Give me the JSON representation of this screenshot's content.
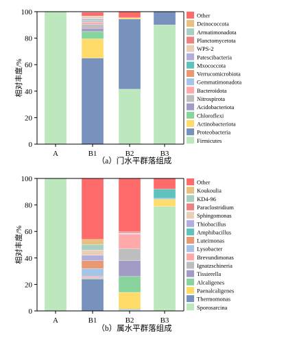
{
  "chart_data": [
    {
      "type": "bar",
      "stacked": true,
      "caption": "（a）门水平群落组成",
      "ylabel": "相对丰度/%",
      "xlabel": "",
      "ylim": [
        0,
        100
      ],
      "yticks": [
        0,
        20,
        40,
        60,
        80,
        100
      ],
      "grid": false,
      "legend_position": "right",
      "categories": [
        "A",
        "B1",
        "B2",
        "B3"
      ],
      "series": [
        {
          "name": "Firmicutes",
          "color": "#bde8bd",
          "values": [
            100,
            0,
            41.5,
            90
          ]
        },
        {
          "name": "Proteobacteria",
          "color": "#7891bd",
          "values": [
            0,
            65,
            53,
            10
          ]
        },
        {
          "name": "Actinobacteriota",
          "color": "#ffdc6a",
          "values": [
            0,
            14.5,
            1,
            0
          ]
        },
        {
          "name": "Chloroflexi",
          "color": "#88d49c",
          "values": [
            0,
            5.5,
            0,
            0
          ]
        },
        {
          "name": "Acidobacteriota",
          "color": "#a29bc6",
          "values": [
            0,
            2.5,
            0,
            0
          ]
        },
        {
          "name": "Nitrospirota",
          "color": "#bebebe",
          "values": [
            0,
            3,
            0,
            0
          ]
        },
        {
          "name": "Bacteroidota",
          "color": "#ffaaaa",
          "values": [
            0,
            1.5,
            0,
            0
          ]
        },
        {
          "name": "Gemmatimonadota",
          "color": "#a5c4e6",
          "values": [
            0,
            1,
            0,
            0
          ]
        },
        {
          "name": "Verrucomicrobiota",
          "color": "#e89873",
          "values": [
            0,
            0.7,
            0,
            0
          ]
        },
        {
          "name": "Mxococcota",
          "color": "#5fc2bd",
          "values": [
            0,
            0.6,
            0,
            0
          ]
        },
        {
          "name": "Patescibacteria",
          "color": "#b3addb",
          "values": [
            0,
            0.5,
            0,
            0
          ]
        },
        {
          "name": "WPS-2",
          "color": "#e8cfb8",
          "values": [
            0,
            0.5,
            0,
            0
          ]
        },
        {
          "name": "Planctomycetota",
          "color": "#e98282",
          "values": [
            0,
            0.5,
            0,
            0
          ]
        },
        {
          "name": "Armatimonadota",
          "color": "#a8d0c2",
          "values": [
            0,
            0.5,
            0,
            0
          ]
        },
        {
          "name": "Deinococcota",
          "color": "#e8c080",
          "values": [
            0,
            0.5,
            0,
            0
          ]
        },
        {
          "name": "Other",
          "color": "#ff6b6b",
          "values": [
            0,
            2.7,
            4.5,
            0
          ]
        }
      ]
    },
    {
      "type": "bar",
      "stacked": true,
      "caption": "（b）属水平群落组成",
      "ylabel": "相对丰度/%",
      "xlabel": "",
      "ylim": [
        0,
        100
      ],
      "yticks": [
        0,
        20,
        40,
        60,
        80,
        100
      ],
      "grid": false,
      "legend_position": "right",
      "categories": [
        "A",
        "B1",
        "B2",
        "B3"
      ],
      "series": [
        {
          "name": "Sporosarcina",
          "color": "#bde8bd",
          "values": [
            100,
            0,
            1,
            79
          ]
        },
        {
          "name": "Thermomonas",
          "color": "#7891bd",
          "values": [
            0,
            24,
            0.5,
            0
          ]
        },
        {
          "name": "Paenalcaligenes",
          "color": "#ffdc6a",
          "values": [
            0,
            0,
            12.5,
            5
          ]
        },
        {
          "name": "Alcaligenes",
          "color": "#88d49c",
          "values": [
            0,
            0.5,
            12,
            0.5
          ]
        },
        {
          "name": "Tissierella",
          "color": "#a29bc6",
          "values": [
            0,
            0.5,
            12,
            0.5
          ]
        },
        {
          "name": "Ignatzschineria",
          "color": "#bebebe",
          "values": [
            0,
            0,
            9,
            0
          ]
        },
        {
          "name": "Brevundimonas",
          "color": "#ffaaaa",
          "values": [
            0,
            1,
            11,
            0
          ]
        },
        {
          "name": "Lysobacter",
          "color": "#a5c4e6",
          "values": [
            0,
            6,
            0,
            0
          ]
        },
        {
          "name": "Luteimonas",
          "color": "#e89873",
          "values": [
            0,
            6,
            0,
            0
          ]
        },
        {
          "name": "Amphibacillus",
          "color": "#5fc2bd",
          "values": [
            0,
            0,
            0,
            7
          ]
        },
        {
          "name": "Thiobacillus",
          "color": "#b3addb",
          "values": [
            0,
            4,
            0.5,
            0
          ]
        },
        {
          "name": "Sphingomonas",
          "color": "#e8cfb8",
          "values": [
            0,
            4,
            0.5,
            0
          ]
        },
        {
          "name": "Paraclostridium",
          "color": "#e98282",
          "values": [
            0,
            0,
            1,
            0
          ]
        },
        {
          "name": "KD4-96",
          "color": "#a8d0c2",
          "values": [
            0,
            4,
            0,
            0
          ]
        },
        {
          "name": "Koukoulia",
          "color": "#e8c080",
          "values": [
            0,
            4,
            0,
            0
          ]
        },
        {
          "name": "Other",
          "color": "#ff6b6b",
          "values": [
            0,
            46,
            40,
            8
          ]
        }
      ]
    }
  ]
}
